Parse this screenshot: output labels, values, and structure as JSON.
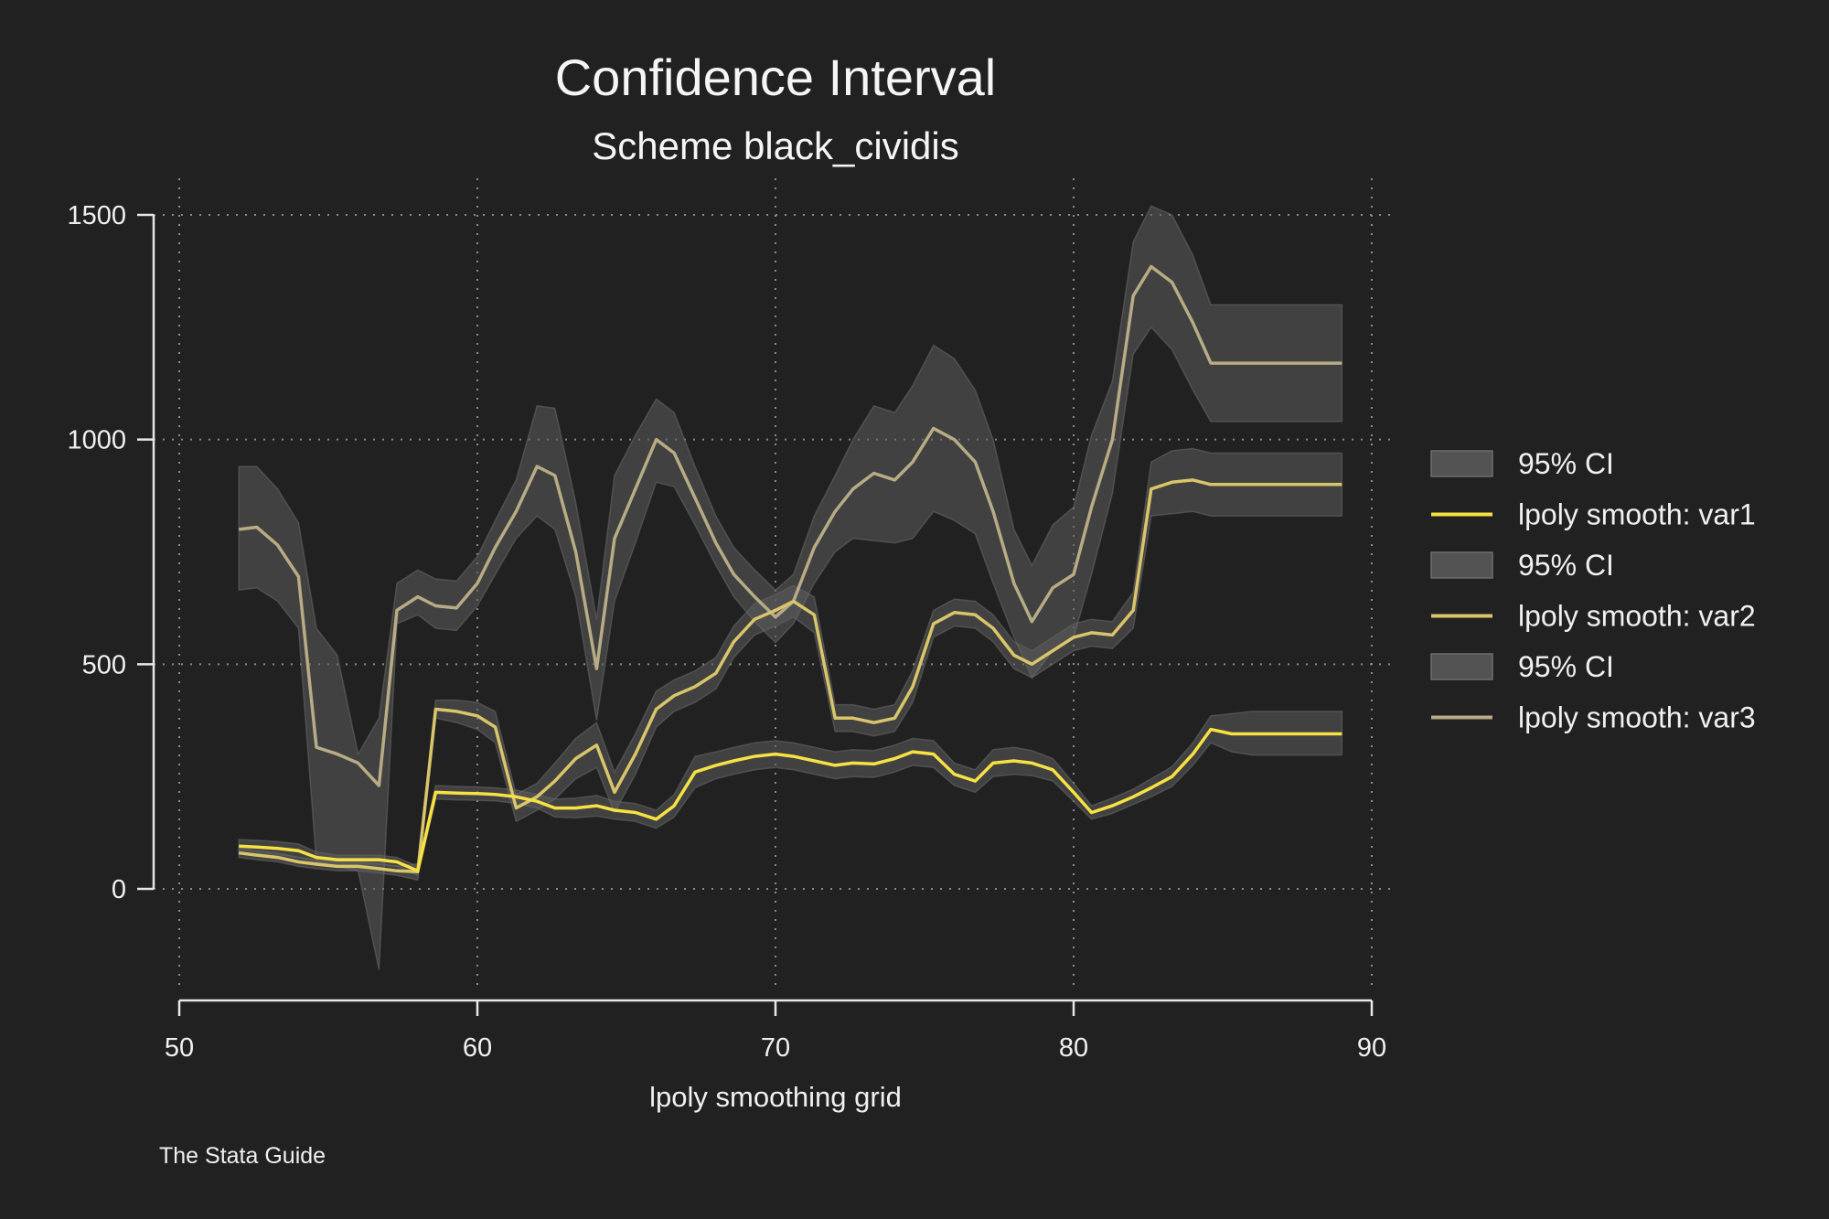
{
  "chart_data": {
    "type": "line",
    "title": "Confidence Interval",
    "subtitle": "Scheme black_cividis",
    "xlabel": "lpoly smoothing grid",
    "ylabel": "",
    "note": "The Stata Guide",
    "xlim": [
      50,
      90
    ],
    "ylim": [
      -250,
      1550
    ],
    "xticks": [
      "50",
      "60",
      "70",
      "80",
      "90"
    ],
    "yticks": [
      "0",
      "500",
      "1000",
      "1500"
    ],
    "grid": true,
    "legend_position": "right",
    "colors": {
      "background": "#212121",
      "band_fill": "#5c5c5c",
      "var1": "#f7e244",
      "var2": "#d9c56a",
      "var3": "#b7ac85",
      "axis": "#e8e8e8",
      "grid": "#8a8a8a"
    },
    "legend": [
      {
        "label": "95% CI",
        "kind": "band"
      },
      {
        "label": "lpoly smooth: var1",
        "kind": "line",
        "color": "#f7e244"
      },
      {
        "label": "95% CI",
        "kind": "band"
      },
      {
        "label": "lpoly smooth: var2",
        "kind": "line",
        "color": "#d9c56a"
      },
      {
        "label": "95% CI",
        "kind": "band"
      },
      {
        "label": "lpoly smooth: var3",
        "kind": "line",
        "color": "#b7ac85"
      }
    ],
    "x": [
      52,
      52.6,
      53.3,
      54,
      54.6,
      55.3,
      56,
      56.7,
      57.3,
      58,
      58.6,
      59.3,
      60,
      60.6,
      61.3,
      62,
      62.6,
      63.3,
      64,
      64.6,
      65.3,
      66,
      66.6,
      67.3,
      68,
      68.6,
      69.3,
      70,
      70.6,
      71.3,
      72,
      72.6,
      73.3,
      74,
      74.6,
      75.3,
      76,
      76.7,
      77.3,
      78,
      78.6,
      79.3,
      80,
      80.6,
      81.3,
      82,
      82.6,
      83.3,
      84,
      84.6,
      85.3,
      86,
      86.6,
      87.3,
      88,
      88.6,
      89
    ],
    "series": [
      {
        "name": "lpoly smooth: var1",
        "color": "#f7e244",
        "values": [
          95,
          93,
          90,
          85,
          70,
          65,
          65,
          65,
          60,
          40,
          215,
          213,
          212,
          210,
          205,
          195,
          180,
          180,
          185,
          175,
          170,
          155,
          185,
          260,
          275,
          285,
          295,
          300,
          295,
          285,
          275,
          280,
          278,
          290,
          305,
          300,
          255,
          240,
          280,
          285,
          280,
          265,
          215,
          170,
          185,
          205,
          225,
          250,
          300,
          355,
          345,
          345,
          345,
          345,
          345,
          345,
          345
        ],
        "lower": [
          80,
          78,
          75,
          70,
          58,
          55,
          55,
          55,
          50,
          30,
          200,
          198,
          197,
          196,
          190,
          180,
          160,
          158,
          162,
          155,
          150,
          135,
          160,
          225,
          245,
          255,
          265,
          270,
          265,
          255,
          245,
          250,
          248,
          260,
          275,
          270,
          230,
          215,
          250,
          255,
          252,
          240,
          195,
          155,
          168,
          188,
          205,
          228,
          275,
          325,
          305,
          298,
          298,
          298,
          298,
          298,
          298
        ],
        "upper": [
          110,
          108,
          105,
          100,
          82,
          75,
          75,
          75,
          70,
          50,
          230,
          228,
          227,
          225,
          220,
          210,
          200,
          202,
          208,
          195,
          190,
          175,
          210,
          295,
          305,
          315,
          325,
          330,
          325,
          315,
          305,
          310,
          308,
          320,
          335,
          330,
          280,
          265,
          310,
          315,
          308,
          290,
          235,
          185,
          202,
          222,
          245,
          272,
          325,
          385,
          390,
          395,
          395,
          395,
          395,
          395,
          395
        ]
      },
      {
        "name": "lpoly smooth: var2",
        "color": "#d9c56a",
        "values": [
          80,
          75,
          70,
          60,
          55,
          50,
          50,
          45,
          40,
          38,
          400,
          395,
          385,
          360,
          180,
          205,
          240,
          290,
          320,
          215,
          300,
          400,
          430,
          450,
          480,
          550,
          600,
          620,
          640,
          610,
          380,
          380,
          370,
          380,
          450,
          590,
          615,
          610,
          580,
          520,
          500,
          530,
          560,
          570,
          565,
          620,
          890,
          905,
          910,
          900,
          900,
          900,
          900,
          900,
          900,
          900,
          900
        ],
        "lower": [
          70,
          65,
          60,
          50,
          45,
          40,
          40,
          35,
          30,
          20,
          380,
          370,
          355,
          325,
          150,
          175,
          200,
          245,
          270,
          170,
          255,
          360,
          395,
          415,
          445,
          515,
          565,
          585,
          605,
          570,
          350,
          350,
          340,
          350,
          415,
          560,
          585,
          580,
          550,
          490,
          470,
          500,
          530,
          540,
          535,
          580,
          830,
          835,
          840,
          830,
          830,
          830,
          830,
          830,
          830,
          830,
          830
        ],
        "upper": [
          90,
          85,
          80,
          70,
          65,
          60,
          60,
          55,
          50,
          56,
          420,
          420,
          415,
          395,
          210,
          235,
          280,
          335,
          370,
          260,
          345,
          440,
          465,
          485,
          515,
          585,
          635,
          655,
          675,
          650,
          410,
          410,
          400,
          410,
          485,
          620,
          645,
          640,
          610,
          550,
          530,
          560,
          590,
          600,
          595,
          660,
          950,
          975,
          980,
          970,
          970,
          970,
          970,
          970,
          970,
          970,
          970
        ]
      },
      {
        "name": "lpoly smooth: var3",
        "color": "#b7ac85",
        "values": [
          800,
          805,
          765,
          695,
          315,
          300,
          280,
          230,
          620,
          650,
          630,
          625,
          680,
          760,
          840,
          940,
          920,
          750,
          490,
          780,
          890,
          1000,
          970,
          870,
          770,
          700,
          650,
          605,
          640,
          760,
          840,
          890,
          925,
          910,
          950,
          1025,
          1000,
          950,
          840,
          680,
          595,
          670,
          700,
          850,
          1000,
          1320,
          1385,
          1350,
          1260,
          1170,
          1170,
          1170,
          1170,
          1170,
          1170,
          1170,
          1170
        ],
        "lower": [
          665,
          670,
          640,
          580,
          60,
          50,
          40,
          -180,
          590,
          610,
          580,
          575,
          630,
          700,
          780,
          830,
          800,
          650,
          375,
          640,
          770,
          905,
          895,
          810,
          720,
          650,
          595,
          548,
          590,
          680,
          750,
          780,
          775,
          770,
          780,
          840,
          820,
          790,
          680,
          560,
          470,
          530,
          560,
          700,
          880,
          1190,
          1250,
          1200,
          1110,
          1040,
          1040,
          1040,
          1040,
          1040,
          1040,
          1040,
          1040
        ],
        "upper": [
          940,
          940,
          890,
          815,
          580,
          520,
          300,
          380,
          680,
          710,
          690,
          685,
          740,
          820,
          910,
          1075,
          1070,
          860,
          600,
          920,
          1010,
          1090,
          1060,
          940,
          830,
          760,
          710,
          665,
          700,
          830,
          920,
          1000,
          1075,
          1060,
          1120,
          1210,
          1180,
          1110,
          1000,
          800,
          720,
          810,
          850,
          1010,
          1130,
          1440,
          1520,
          1500,
          1410,
          1300,
          1300,
          1300,
          1300,
          1300,
          1300,
          1300,
          1300
        ]
      }
    ]
  }
}
